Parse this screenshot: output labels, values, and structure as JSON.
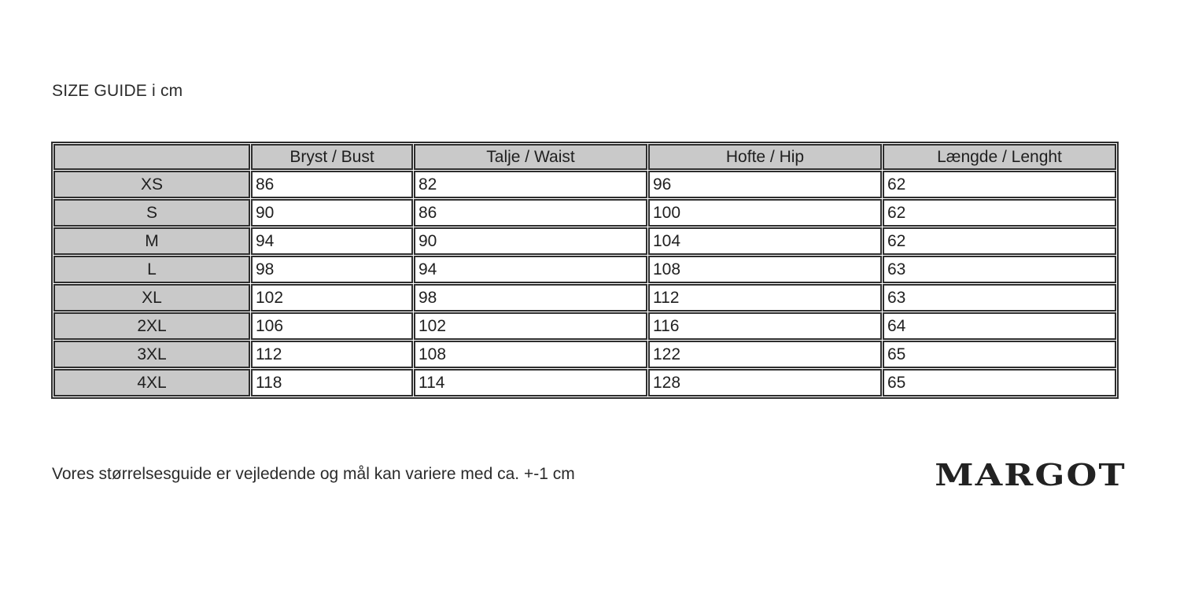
{
  "page": {
    "title": "SIZE GUIDE i cm",
    "note": "Vores størrelsesguide er vejledende og mål kan variere med ca. +-1 cm",
    "brand": "MARGOT"
  },
  "colors": {
    "header_bg": "#c9c9c9",
    "border": "#2e2e2e",
    "text": "#1f1f1f",
    "background": "#ffffff"
  },
  "table": {
    "columns": [
      "",
      "Bryst / Bust",
      "Talje / Waist",
      "Hofte / Hip",
      "Længde / Lenght"
    ],
    "rows": [
      {
        "size": "XS",
        "values": [
          "86",
          "82",
          "96",
          "62"
        ]
      },
      {
        "size": "S",
        "values": [
          "90",
          "86",
          "100",
          "62"
        ]
      },
      {
        "size": "M",
        "values": [
          "94",
          "90",
          "104",
          "62"
        ]
      },
      {
        "size": "L",
        "values": [
          "98",
          "94",
          "108",
          "63"
        ]
      },
      {
        "size": "XL",
        "values": [
          "102",
          "98",
          "112",
          "63"
        ]
      },
      {
        "size": "2XL",
        "values": [
          "106",
          "102",
          "116",
          "64"
        ]
      },
      {
        "size": "3XL",
        "values": [
          "112",
          "108",
          "122",
          "65"
        ]
      },
      {
        "size": "4XL",
        "values": [
          "118",
          "114",
          "128",
          "65"
        ]
      }
    ]
  }
}
